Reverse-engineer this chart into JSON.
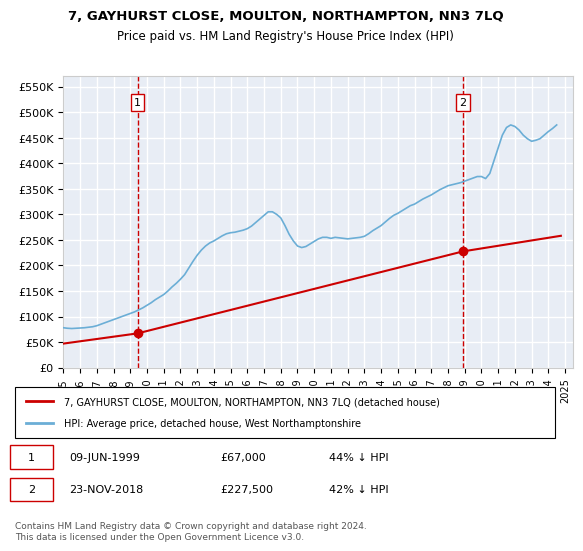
{
  "title": "7, GAYHURST CLOSE, MOULTON, NORTHAMPTON, NN3 7LQ",
  "subtitle": "Price paid vs. HM Land Registry's House Price Index (HPI)",
  "background_color": "#eef2f8",
  "plot_bg_color": "#e8edf5",
  "grid_color": "#ffffff",
  "hpi_color": "#6baed6",
  "price_color": "#cc0000",
  "annotation_color": "#cc0000",
  "marker_color": "#cc0000",
  "dashed_line_color": "#cc0000",
  "ylim": [
    0,
    570000
  ],
  "yticks": [
    0,
    50000,
    100000,
    150000,
    200000,
    250000,
    300000,
    350000,
    400000,
    450000,
    500000,
    550000
  ],
  "ytick_labels": [
    "£0",
    "£50K",
    "£100K",
    "£150K",
    "£200K",
    "£250K",
    "£300K",
    "£350K",
    "£400K",
    "£450K",
    "£500K",
    "£550K"
  ],
  "xlim_start": 1995.0,
  "xlim_end": 2025.5,
  "xticks": [
    1995,
    1996,
    1997,
    1998,
    1999,
    2000,
    2001,
    2002,
    2003,
    2004,
    2005,
    2006,
    2007,
    2008,
    2009,
    2010,
    2011,
    2012,
    2013,
    2014,
    2015,
    2016,
    2017,
    2018,
    2019,
    2020,
    2021,
    2022,
    2023,
    2024,
    2025
  ],
  "sale1_x": 1999.44,
  "sale1_y": 67000,
  "sale1_label": "1",
  "sale2_x": 2018.9,
  "sale2_y": 227500,
  "sale2_label": "2",
  "legend_label_red": "7, GAYHURST CLOSE, MOULTON, NORTHAMPTON, NN3 7LQ (detached house)",
  "legend_label_blue": "HPI: Average price, detached house, West Northamptonshire",
  "annotation1": "1     09-JUN-1999     £67,000     44% ↓ HPI",
  "annotation2": "2     23-NOV-2018     £227,500     42% ↓ HPI",
  "footer": "Contains HM Land Registry data © Crown copyright and database right 2024.\nThis data is licensed under the Open Government Licence v3.0.",
  "hpi_data_x": [
    1995.0,
    1995.25,
    1995.5,
    1995.75,
    1996.0,
    1996.25,
    1996.5,
    1996.75,
    1997.0,
    1997.25,
    1997.5,
    1997.75,
    1998.0,
    1998.25,
    1998.5,
    1998.75,
    1999.0,
    1999.25,
    1999.5,
    1999.75,
    2000.0,
    2000.25,
    2000.5,
    2000.75,
    2001.0,
    2001.25,
    2001.5,
    2001.75,
    2002.0,
    2002.25,
    2002.5,
    2002.75,
    2003.0,
    2003.25,
    2003.5,
    2003.75,
    2004.0,
    2004.25,
    2004.5,
    2004.75,
    2005.0,
    2005.25,
    2005.5,
    2005.75,
    2006.0,
    2006.25,
    2006.5,
    2006.75,
    2007.0,
    2007.25,
    2007.5,
    2007.75,
    2008.0,
    2008.25,
    2008.5,
    2008.75,
    2009.0,
    2009.25,
    2009.5,
    2009.75,
    2010.0,
    2010.25,
    2010.5,
    2010.75,
    2011.0,
    2011.25,
    2011.5,
    2011.75,
    2012.0,
    2012.25,
    2012.5,
    2012.75,
    2013.0,
    2013.25,
    2013.5,
    2013.75,
    2014.0,
    2014.25,
    2014.5,
    2014.75,
    2015.0,
    2015.25,
    2015.5,
    2015.75,
    2016.0,
    2016.25,
    2016.5,
    2016.75,
    2017.0,
    2017.25,
    2017.5,
    2017.75,
    2018.0,
    2018.25,
    2018.5,
    2018.75,
    2019.0,
    2019.25,
    2019.5,
    2019.75,
    2020.0,
    2020.25,
    2020.5,
    2020.75,
    2021.0,
    2021.25,
    2021.5,
    2021.75,
    2022.0,
    2022.25,
    2022.5,
    2022.75,
    2023.0,
    2023.25,
    2023.5,
    2023.75,
    2024.0,
    2024.25,
    2024.5
  ],
  "hpi_data_y": [
    78000,
    77000,
    76500,
    77000,
    77500,
    78000,
    79000,
    80000,
    82000,
    85000,
    88000,
    91000,
    94000,
    97000,
    100000,
    103000,
    106000,
    109000,
    113000,
    117000,
    122000,
    127000,
    133000,
    138000,
    143000,
    150000,
    158000,
    165000,
    173000,
    182000,
    195000,
    208000,
    220000,
    230000,
    238000,
    244000,
    248000,
    253000,
    258000,
    262000,
    264000,
    265000,
    267000,
    269000,
    272000,
    277000,
    284000,
    291000,
    298000,
    305000,
    305000,
    300000,
    293000,
    278000,
    261000,
    248000,
    238000,
    235000,
    237000,
    242000,
    247000,
    252000,
    255000,
    255000,
    253000,
    255000,
    254000,
    253000,
    252000,
    253000,
    254000,
    255000,
    257000,
    262000,
    268000,
    273000,
    278000,
    285000,
    292000,
    298000,
    302000,
    307000,
    312000,
    317000,
    320000,
    325000,
    330000,
    334000,
    338000,
    343000,
    348000,
    352000,
    356000,
    358000,
    360000,
    362000,
    365000,
    368000,
    371000,
    374000,
    374000,
    370000,
    380000,
    405000,
    430000,
    455000,
    470000,
    475000,
    472000,
    465000,
    455000,
    448000,
    443000,
    445000,
    448000,
    455000,
    462000,
    468000,
    475000
  ],
  "price_data_x": [
    1995.0,
    1999.44,
    2018.9,
    2024.75
  ],
  "price_data_y": [
    47000,
    67000,
    227500,
    258000
  ]
}
